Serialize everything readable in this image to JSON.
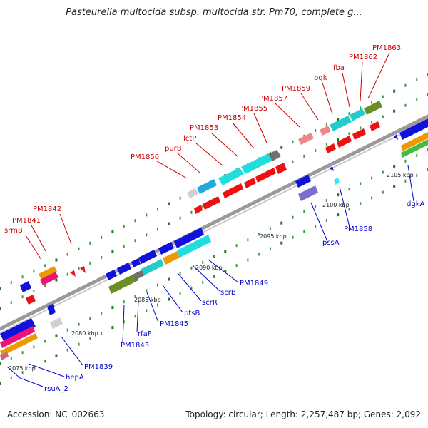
{
  "title": "Pasteurella multocida subsp. multocida str. Pm70, complete g...",
  "footer": {
    "accession": "Accession: NC_002663",
    "summary": "Topology: circular; Length: 2,257,487 bp; Genes: 2,092"
  },
  "colors": {
    "backbone": "#8f8f8f",
    "label_red": "#cc0000",
    "label_blue": "#0000cc",
    "tick": "#1e7a1e"
  },
  "ticks": [
    "2075 kbp",
    "2080 kbp",
    "2085 kbp",
    "2090 kbp",
    "2095 kbp",
    "2100 kbp",
    "2105 kbp"
  ],
  "labels_red": [
    "srmB",
    "PM1841",
    "PM1842",
    "PM1850",
    "purB",
    "lctP",
    "PM1853",
    "PM1854",
    "PM1855",
    "PM1857",
    "PM1859",
    "pgk",
    "fba",
    "PM1862",
    "PM1863"
  ],
  "labels_blue": [
    "rsuA_2",
    "hepA",
    "PM1839",
    "PM1843",
    "rfaF",
    "PM1845",
    "ptsB",
    "scrR",
    "scrB",
    "PM1849",
    "pssA",
    "PM1858",
    "dgkA"
  ]
}
